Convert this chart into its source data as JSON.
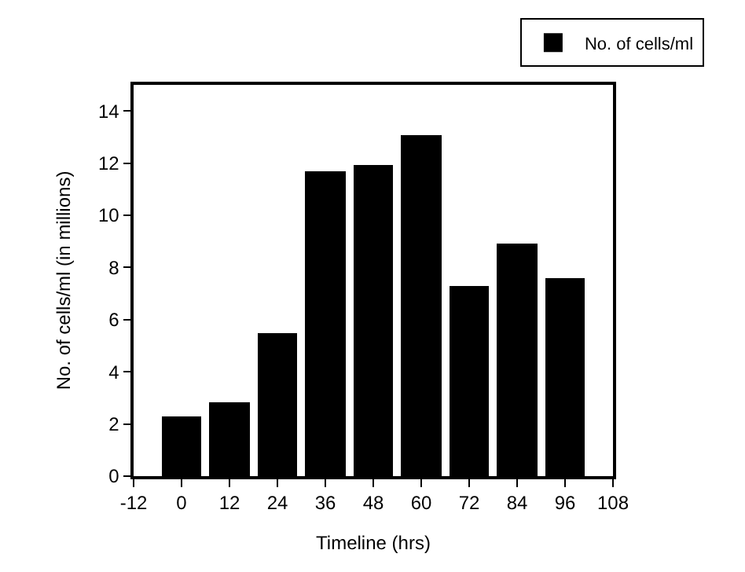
{
  "chart_data": {
    "type": "bar",
    "xlabel": "Timeline (hrs)",
    "ylabel": "No. of cells/ml (in millions)",
    "x": [
      0,
      12,
      24,
      36,
      48,
      60,
      72,
      84,
      96
    ],
    "series": [
      {
        "name": "No. of cells/ml",
        "color": "#000000",
        "values": [
          2.27,
          2.86,
          5.46,
          11.7,
          11.95,
          13.1,
          7.29,
          8.91,
          7.58
        ]
      }
    ],
    "xlim": [
      -12,
      108
    ],
    "xticks": [
      -12,
      0,
      12,
      24,
      36,
      48,
      60,
      72,
      84,
      96,
      108
    ],
    "ylim": [
      0,
      15
    ],
    "yticks": [
      0,
      2,
      4,
      6,
      8,
      10,
      12,
      14
    ],
    "legend": "top right"
  }
}
